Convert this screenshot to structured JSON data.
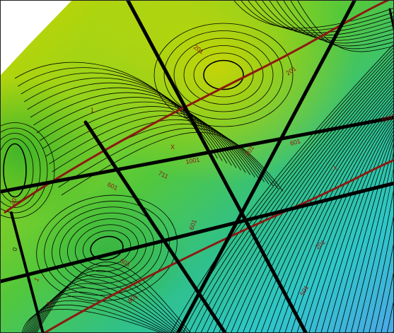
{
  "map": {
    "colors": {
      "ramp": [
        "#c6d400",
        "#9dd418",
        "#54c83a",
        "#2fc08a",
        "#2ec7c8",
        "#4aa8e6"
      ],
      "contour": "#000000",
      "fault_line": "#000000",
      "section_line": "#8b1a12",
      "label": "#8a1410",
      "background": "#ffffff"
    },
    "labels": [
      {
        "id": "l1",
        "text": "201"
      },
      {
        "id": "l2",
        "text": "201"
      },
      {
        "id": "l3",
        "text": "1"
      },
      {
        "id": "l4",
        "text": "X"
      },
      {
        "id": "l5",
        "text": "X"
      },
      {
        "id": "l6",
        "text": "1001"
      },
      {
        "id": "l7",
        "text": "711"
      },
      {
        "id": "l8",
        "text": "601"
      },
      {
        "id": "l9",
        "text": "501"
      },
      {
        "id": "l10",
        "text": "601"
      },
      {
        "id": "l11",
        "text": "601"
      },
      {
        "id": "l12",
        "text": "801"
      },
      {
        "id": "l13",
        "text": "601"
      },
      {
        "id": "l14",
        "text": "6001"
      },
      {
        "id": "l15",
        "text": "201"
      },
      {
        "id": "l16",
        "text": "501"
      },
      {
        "id": "l17",
        "text": "1"
      },
      {
        "id": "l18",
        "text": "A"
      },
      {
        "id": "l19",
        "text": "0"
      },
      {
        "id": "l20",
        "text": "20"
      }
    ]
  }
}
